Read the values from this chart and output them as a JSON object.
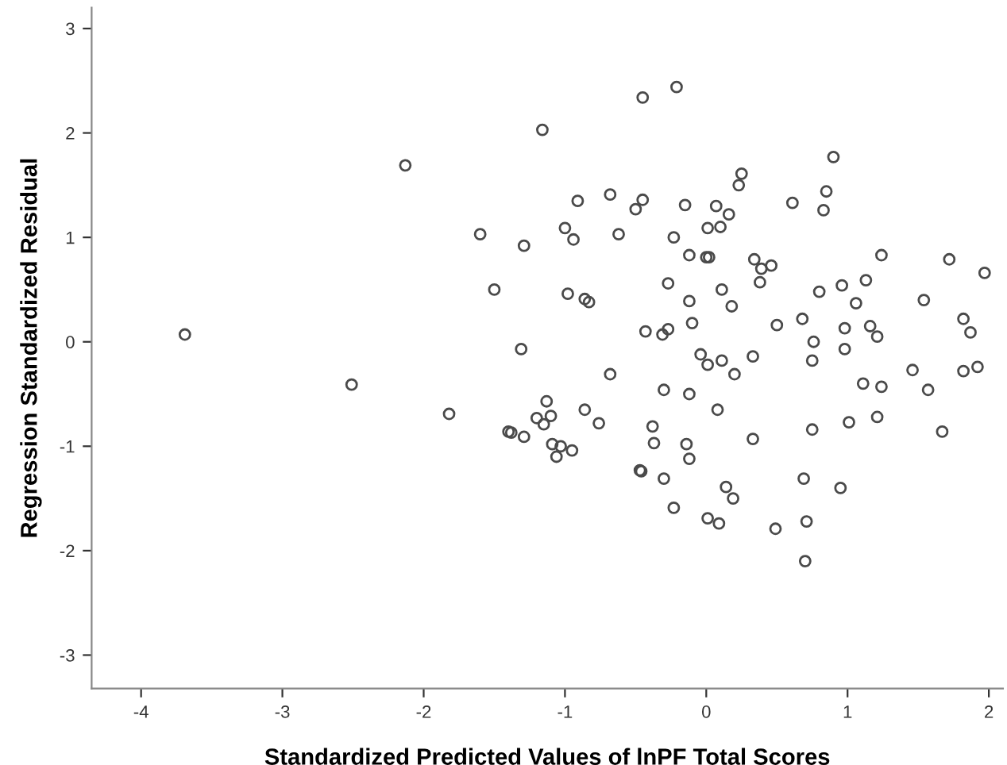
{
  "chart_data": {
    "type": "scatter",
    "xlabel": "Standardized Predicted Values of lnPF Total Scores",
    "ylabel": "Regression Standardized Residual",
    "xlim": [
      -4.35,
      2.1
    ],
    "ylim": [
      -3.32,
      3.2
    ],
    "xticks": [
      -4,
      -3,
      -2,
      -1,
      0,
      1,
      2
    ],
    "yticks": [
      -3,
      -2,
      -1,
      0,
      1,
      2,
      3
    ],
    "grid": false,
    "marker": "circle",
    "series": [
      {
        "color": "#4a4a4a",
        "x": [
          -3.69,
          -2.13,
          -1.6,
          -1.5,
          -1.29,
          -1.31,
          -2.51,
          -1.82,
          -1.4,
          -1.38,
          -1.29,
          -0.45,
          -0.21,
          -1.16,
          0.9,
          0.25,
          0.23,
          0.85,
          0.83,
          -0.91,
          -0.68,
          -0.45,
          -0.5,
          -0.15,
          0.07,
          0.16,
          0.61,
          -1.0,
          -0.94,
          -0.62,
          -0.23,
          0.01,
          0.1,
          -0.12,
          0.0,
          0.02,
          0.34,
          0.39,
          0.46,
          0.38,
          1.24,
          1.72,
          1.97,
          -0.98,
          -0.86,
          -0.83,
          -0.27,
          0.11,
          -0.12,
          0.18,
          0.8,
          0.96,
          1.13,
          1.06,
          1.54,
          0.5,
          0.68,
          0.76,
          0.98,
          1.16,
          1.21,
          1.82,
          1.87,
          -0.43,
          -0.31,
          -0.27,
          -0.1,
          -0.04,
          0.01,
          0.11,
          0.2,
          0.33,
          0.75,
          0.98,
          1.46,
          1.82,
          1.92,
          -0.68,
          -0.3,
          -0.12,
          0.08,
          0.33,
          0.75,
          1.01,
          1.11,
          1.24,
          1.21,
          1.57,
          1.67,
          -1.13,
          -1.2,
          -1.1,
          -1.15,
          -0.86,
          -0.76,
          -1.09,
          -1.03,
          -1.06,
          -0.95,
          -0.38,
          -0.37,
          -0.14,
          -0.12,
          -0.47,
          -0.46,
          -0.3,
          0.14,
          0.19,
          -0.23,
          0.01,
          0.09,
          0.49,
          0.69,
          0.95,
          0.71,
          0.7
        ],
        "values": [
          0.07,
          1.69,
          1.03,
          0.5,
          0.92,
          -0.07,
          -0.41,
          -0.69,
          -0.86,
          -0.87,
          -0.91,
          2.34,
          2.44,
          2.03,
          1.77,
          1.61,
          1.5,
          1.44,
          1.26,
          1.35,
          1.41,
          1.36,
          1.27,
          1.31,
          1.3,
          1.22,
          1.33,
          1.09,
          0.98,
          1.03,
          1.0,
          1.09,
          1.1,
          0.83,
          0.81,
          0.81,
          0.79,
          0.7,
          0.73,
          0.57,
          0.83,
          0.79,
          0.66,
          0.46,
          0.41,
          0.38,
          0.56,
          0.5,
          0.39,
          0.34,
          0.48,
          0.54,
          0.59,
          0.37,
          0.4,
          0.16,
          0.22,
          0.0,
          0.13,
          0.15,
          0.05,
          0.22,
          0.09,
          0.1,
          0.07,
          0.12,
          0.18,
          -0.12,
          -0.22,
          -0.18,
          -0.31,
          -0.14,
          -0.18,
          -0.07,
          -0.27,
          -0.28,
          -0.24,
          -0.31,
          -0.46,
          -0.5,
          -0.65,
          -0.93,
          -0.84,
          -0.77,
          -0.4,
          -0.43,
          -0.72,
          -0.46,
          -0.86,
          -0.57,
          -0.73,
          -0.71,
          -0.79,
          -0.65,
          -0.78,
          -0.98,
          -1.0,
          -1.1,
          -1.04,
          -0.81,
          -0.97,
          -0.98,
          -1.12,
          -1.23,
          -1.24,
          -1.31,
          -1.39,
          -1.5,
          -1.59,
          -1.69,
          -1.74,
          -1.79,
          -1.31,
          -1.4,
          -1.72,
          -2.1
        ]
      }
    ]
  }
}
